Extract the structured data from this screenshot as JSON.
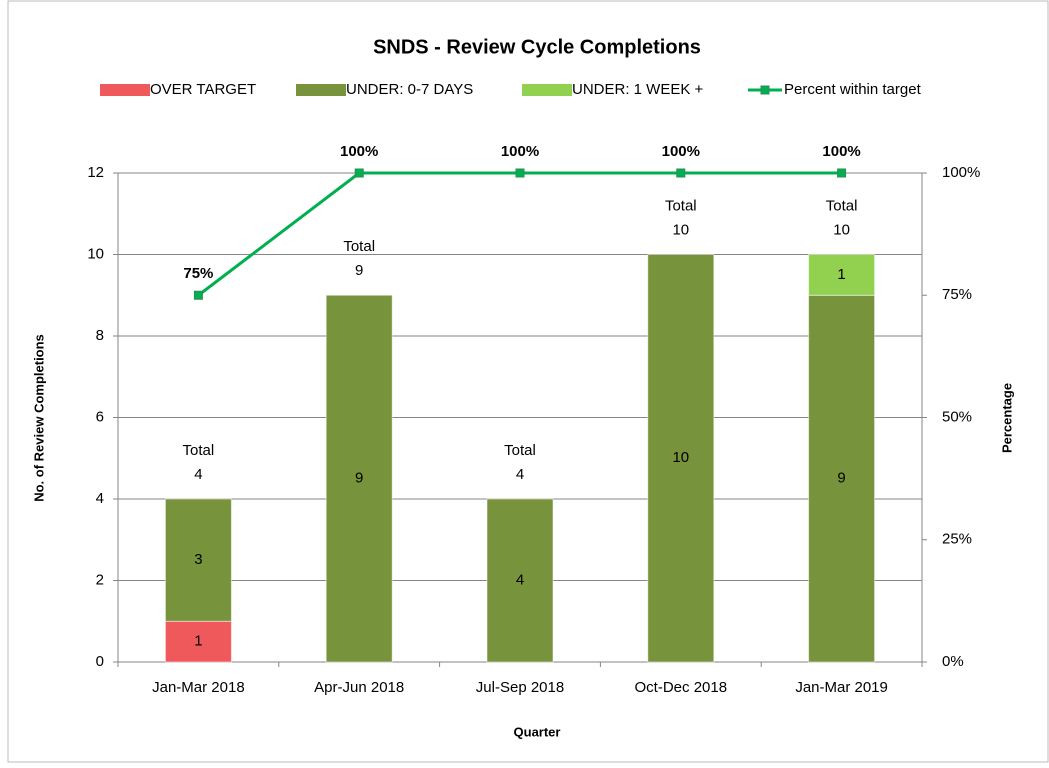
{
  "chart_data": {
    "type": "bar",
    "stacked": true,
    "title": "SNDS - Review Cycle Completions",
    "xlabel": "Quarter",
    "ylabel": "No. of Review Completions",
    "y2label": "Percentage",
    "categories": [
      "Jan-Mar 2018",
      "Apr-Jun 2018",
      "Jul-Sep 2018",
      "Oct-Dec 2018",
      "Jan-Mar 2019"
    ],
    "series": [
      {
        "name": "OVER TARGET",
        "color": "#f0595b",
        "values": [
          1,
          0,
          0,
          0,
          0
        ]
      },
      {
        "name": "UNDER: 0-7 DAYS",
        "color": "#77933c",
        "values": [
          3,
          9,
          4,
          10,
          9
        ]
      },
      {
        "name": "UNDER: 1 WEEK +",
        "color": "#92d050",
        "values": [
          0,
          0,
          0,
          0,
          1
        ]
      },
      {
        "name": "Percent within target",
        "color": "#00b050",
        "type": "line",
        "axis": "y2",
        "values": [
          75,
          100,
          100,
          100,
          100
        ],
        "value_labels": [
          "75%",
          "100%",
          "100%",
          "100%",
          "100%"
        ]
      }
    ],
    "total_label": "Total",
    "totals": [
      4,
      9,
      4,
      10,
      10
    ],
    "ylim": [
      0,
      12
    ],
    "yticks": [
      0,
      2,
      4,
      6,
      8,
      10,
      12
    ],
    "y2lim": [
      0,
      100
    ],
    "y2ticks": [
      {
        "value": 0,
        "label": "0%"
      },
      {
        "value": 25,
        "label": "25%"
      },
      {
        "value": 50,
        "label": "50%"
      },
      {
        "value": 75,
        "label": "75%"
      },
      {
        "value": 100,
        "label": "100%"
      }
    ],
    "grid": true,
    "legend": "top"
  }
}
